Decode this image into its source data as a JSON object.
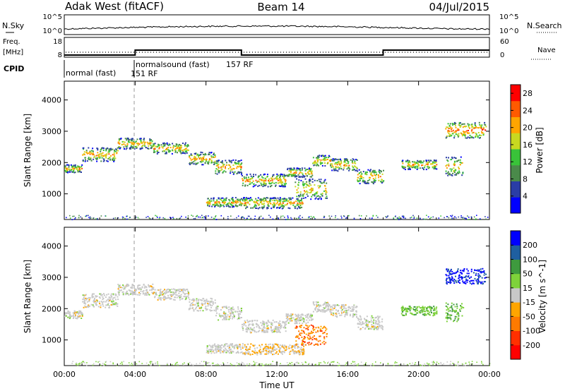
{
  "header": {
    "site": "Adak West (fitACF)",
    "beam": "Beam 14",
    "date": "04/Jul/2015"
  },
  "noise_panel": {
    "left_label": "N.Sky",
    "left_ticks": [
      "10^5",
      "10^0"
    ],
    "right_ticks": [
      "10^5",
      "10^0"
    ],
    "right_label": "N.Search"
  },
  "freq_panel": {
    "left_label_top": "Freq.",
    "left_label_bottom": "[MHz]",
    "left_ticks": [
      "18",
      "8"
    ],
    "right_ticks": [
      "60",
      "0"
    ],
    "right_label": "Nave",
    "frequency_steps_mhz": [
      {
        "from": "00:00",
        "to": "04:00",
        "value": 10.5
      },
      {
        "from": "04:00",
        "to": "10:00",
        "value": 13
      },
      {
        "from": "10:00",
        "to": "18:00",
        "value": 10.5
      },
      {
        "from": "18:00",
        "to": "24:00",
        "value": 13
      }
    ]
  },
  "cpid_panel": {
    "label": "CPID",
    "segments": [
      {
        "label": "normal (fast)",
        "code": "151 RF",
        "from": "00:00",
        "to": "04:00"
      },
      {
        "label": "normalsound (fast)",
        "code": "157 RF",
        "from": "04:00",
        "to": "24:00"
      }
    ]
  },
  "chart_data": [
    {
      "type": "heatmap",
      "title": "",
      "xlabel": "Time UT",
      "ylabel": "Slant Range [km]",
      "x_ticks": [
        "00:00",
        "04:00",
        "08:00",
        "12:00",
        "16:00",
        "20:00",
        "00:00"
      ],
      "xlim": [
        0,
        24
      ],
      "y_ticks": [
        "1000",
        "2000",
        "3000",
        "4000"
      ],
      "ylim": [
        180,
        4600
      ],
      "colorbar": {
        "label": "Power [dB]",
        "ticks": [
          "4",
          "8",
          "12",
          "16",
          "20",
          "24",
          "28"
        ],
        "range": [
          0,
          30
        ],
        "colors": [
          "#0000ff",
          "#2a3da6",
          "#4a8a4a",
          "#39c339",
          "#c8d820",
          "#ffa500",
          "#ff5a00",
          "#ff0000"
        ]
      }
    },
    {
      "type": "heatmap",
      "title": "",
      "xlabel": "Time UT",
      "ylabel": "Slant Range [km]",
      "x_ticks": [
        "00:00",
        "04:00",
        "08:00",
        "12:00",
        "16:00",
        "20:00",
        "00:00"
      ],
      "xlim": [
        0,
        24
      ],
      "y_ticks": [
        "1000",
        "2000",
        "3000",
        "4000"
      ],
      "ylim": [
        180,
        4600
      ],
      "colorbar": {
        "label": "Velocity [m s^-1]",
        "ticks": [
          "200",
          "100",
          "50",
          "15",
          "-15",
          "-50",
          "-100",
          "-200"
        ],
        "colors": [
          "#0000ff",
          "#1f5fa0",
          "#3e9a3e",
          "#7ed23a",
          "#c8c8c8",
          "#ffa500",
          "#ff7a00",
          "#ff3000",
          "#ff0000"
        ]
      }
    }
  ],
  "scatter_bands": [
    {
      "t0": 0.0,
      "t1": 1.0,
      "r0": 1700,
      "r1": 1950
    },
    {
      "t0": 1.0,
      "t1": 3.0,
      "r0": 2050,
      "r1": 2500
    },
    {
      "t0": 3.0,
      "t1": 5.0,
      "r0": 2450,
      "r1": 2800
    },
    {
      "t0": 5.0,
      "t1": 7.0,
      "r0": 2300,
      "r1": 2650
    },
    {
      "t0": 7.0,
      "t1": 8.5,
      "r0": 1950,
      "r1": 2350
    },
    {
      "t0": 8.5,
      "t1": 10.0,
      "r0": 1650,
      "r1": 2100
    },
    {
      "t0": 10.0,
      "t1": 12.5,
      "r0": 1250,
      "r1": 1650
    },
    {
      "t0": 12.5,
      "t1": 14.0,
      "r0": 1550,
      "r1": 1850
    },
    {
      "t0": 14.0,
      "t1": 15.0,
      "r0": 1900,
      "r1": 2250
    },
    {
      "t0": 15.0,
      "t1": 16.5,
      "r0": 1750,
      "r1": 2150
    },
    {
      "t0": 16.5,
      "t1": 18.0,
      "r0": 1350,
      "r1": 1800
    },
    {
      "t0": 8.0,
      "t1": 10.0,
      "r0": 600,
      "r1": 900
    },
    {
      "t0": 10.0,
      "t1": 13.5,
      "r0": 550,
      "r1": 900
    },
    {
      "t0": 13.0,
      "t1": 14.8,
      "r0": 850,
      "r1": 1500
    },
    {
      "t0": 19.0,
      "t1": 21.0,
      "r0": 1800,
      "r1": 2100
    },
    {
      "t0": 21.5,
      "t1": 22.5,
      "r0": 1600,
      "r1": 2200
    },
    {
      "t0": 21.5,
      "t1": 23.8,
      "r0": 2800,
      "r1": 3300
    }
  ]
}
